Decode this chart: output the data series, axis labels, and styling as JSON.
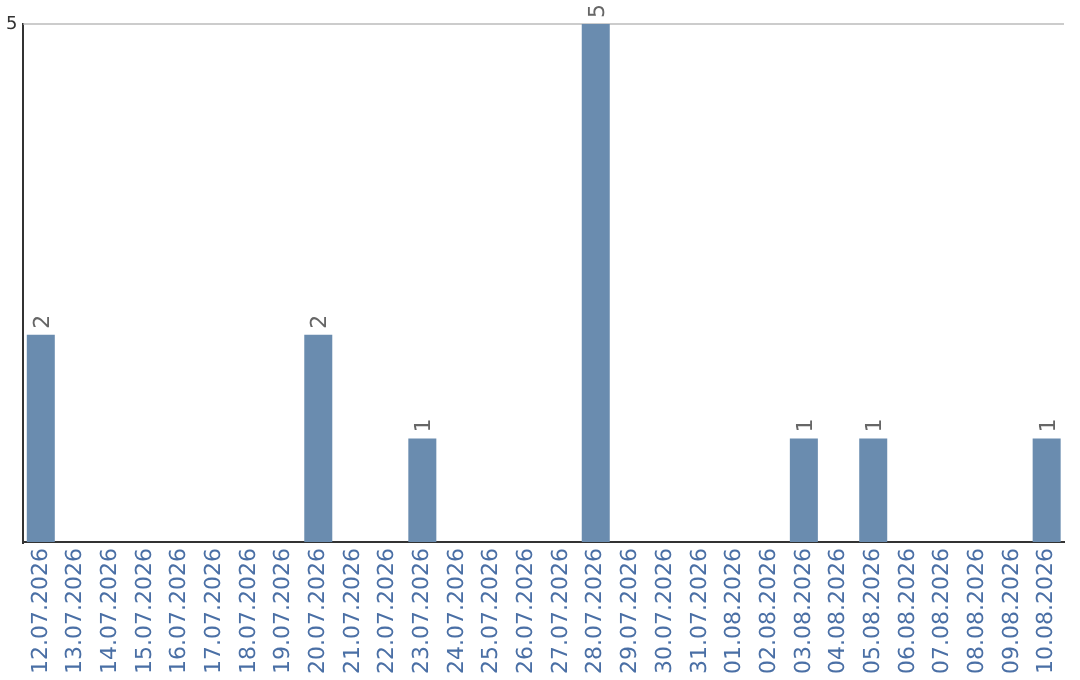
{
  "chart_data": {
    "type": "bar",
    "categories": [
      "12.07.2026",
      "13.07.2026",
      "14.07.2026",
      "15.07.2026",
      "16.07.2026",
      "17.07.2026",
      "18.07.2026",
      "19.07.2026",
      "20.07.2026",
      "21.07.2026",
      "22.07.2026",
      "23.07.2026",
      "24.07.2026",
      "25.07.2026",
      "26.07.2026",
      "27.07.2026",
      "28.07.2026",
      "29.07.2026",
      "30.07.2026",
      "31.07.2026",
      "01.08.2026",
      "02.08.2026",
      "03.08.2026",
      "04.08.2026",
      "05.08.2026",
      "06.08.2026",
      "07.08.2026",
      "08.08.2026",
      "09.08.2026",
      "10.08.2026"
    ],
    "values": [
      2,
      0,
      0,
      0,
      0,
      0,
      0,
      0,
      2,
      0,
      0,
      1,
      0,
      0,
      0,
      0,
      5,
      0,
      0,
      0,
      0,
      0,
      1,
      0,
      1,
      0,
      0,
      0,
      0,
      1
    ],
    "value_labels": [
      "2",
      null,
      null,
      null,
      null,
      null,
      null,
      null,
      "2",
      null,
      null,
      "1",
      null,
      null,
      null,
      null,
      "5",
      null,
      null,
      null,
      null,
      null,
      "1",
      null,
      "1",
      null,
      null,
      null,
      null,
      "1"
    ],
    "color": "#6a8caf",
    "ylim": [
      0,
      5
    ],
    "yticks": [
      5
    ],
    "ref_lines": [
      {
        "axis": "y",
        "value": 5,
        "color": "#cccccc"
      }
    ]
  }
}
